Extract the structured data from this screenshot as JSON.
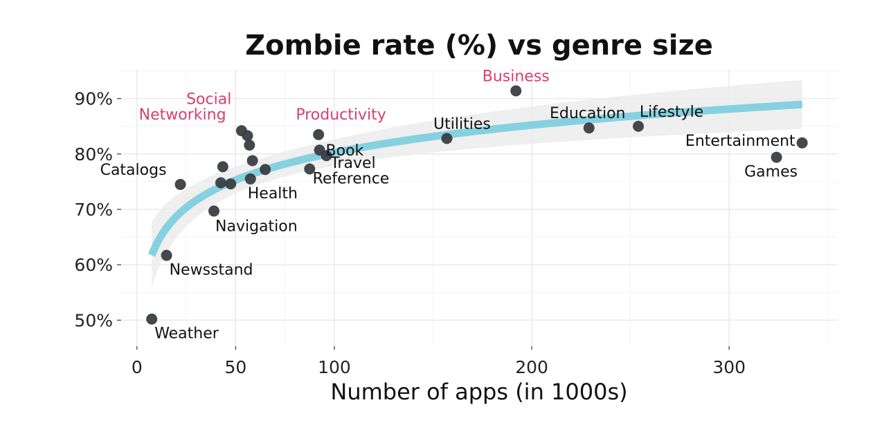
{
  "chart_data": {
    "type": "scatter",
    "title": "Zombie rate (%) vs genre size",
    "xlabel": "Number of apps (in 1000s)",
    "ylabel": "",
    "xlim": [
      -8,
      355
    ],
    "ylim": [
      45.3,
      95.2
    ],
    "x_ticks": [
      0,
      50,
      100,
      200,
      300
    ],
    "x_tick_labels": [
      "0",
      "50",
      "100",
      "200",
      "300"
    ],
    "x_minor_ticks": [
      25,
      75,
      150,
      250,
      350
    ],
    "y_ticks": [
      50,
      60,
      70,
      80,
      90
    ],
    "y_tick_labels": [
      "50%",
      "60%",
      "70%",
      "80%",
      "90%"
    ],
    "grid": true,
    "legend": "none",
    "point_color": "#3a3d42",
    "highlight_color": "#d6406e",
    "label_color": "#111111",
    "fit_color": "#86d1e0",
    "band_color": "#ececec",
    "points": [
      {
        "x": 7.5,
        "y": 50.2,
        "label": "Weather",
        "highlight": false
      },
      {
        "x": 15,
        "y": 61.7,
        "label": "Newsstand",
        "highlight": false
      },
      {
        "x": 22,
        "y": 74.5,
        "label": "Catalogs",
        "highlight": false
      },
      {
        "x": 39,
        "y": 69.7,
        "label": "Navigation",
        "highlight": false
      },
      {
        "x": 42.5,
        "y": 74.8,
        "label": "",
        "highlight": false
      },
      {
        "x": 43.5,
        "y": 77.7,
        "label": "",
        "highlight": false
      },
      {
        "x": 47.5,
        "y": 74.6,
        "label": "",
        "highlight": false
      },
      {
        "x": 53,
        "y": 84.2,
        "label": "",
        "highlight": false
      },
      {
        "x": 56,
        "y": 83.3,
        "label": "",
        "highlight": false
      },
      {
        "x": 57,
        "y": 81.6,
        "label": "",
        "highlight": false
      },
      {
        "x": 57.5,
        "y": 75.5,
        "label": "Health",
        "highlight": false
      },
      {
        "x": 58.5,
        "y": 78.8,
        "label": "",
        "highlight": false
      },
      {
        "x": 65,
        "y": 77.2,
        "label": "",
        "highlight": false
      },
      {
        "x": 87.5,
        "y": 77.3,
        "label": "",
        "highlight": false
      },
      {
        "x": 92,
        "y": 83.5,
        "label": "",
        "highlight": false
      },
      {
        "x": 92.5,
        "y": 80.7,
        "label": "Book",
        "highlight": false
      },
      {
        "x": 96,
        "y": 79.7,
        "label": "",
        "highlight": false
      },
      {
        "x": 157,
        "y": 82.8,
        "label": "Utilities",
        "highlight": false
      },
      {
        "x": 192,
        "y": 91.4,
        "label": "Business",
        "highlight": true
      },
      {
        "x": 229,
        "y": 84.7,
        "label": "Education",
        "highlight": false
      },
      {
        "x": 254,
        "y": 85.0,
        "label": "Lifestyle",
        "highlight": false
      },
      {
        "x": 324,
        "y": 79.4,
        "label": "Games",
        "highlight": false
      },
      {
        "x": 337,
        "y": 82.0,
        "label": "Entertainment",
        "highlight": false
      }
    ],
    "annotations": [
      {
        "text": "Social",
        "x": 25,
        "y": 89.0,
        "anchor": "start",
        "highlight": true
      },
      {
        "text": "Networking",
        "x": 1,
        "y": 86.2,
        "anchor": "start",
        "highlight": true
      },
      {
        "text": "Productivity",
        "x": 80.5,
        "y": 86.2,
        "anchor": "start",
        "highlight": true
      },
      {
        "text": "Travel",
        "x": 98,
        "y": 77.5,
        "anchor": "start",
        "highlight": false
      },
      {
        "text": "Reference",
        "x": 89,
        "y": 74.7,
        "anchor": "start",
        "highlight": false
      }
    ]
  }
}
